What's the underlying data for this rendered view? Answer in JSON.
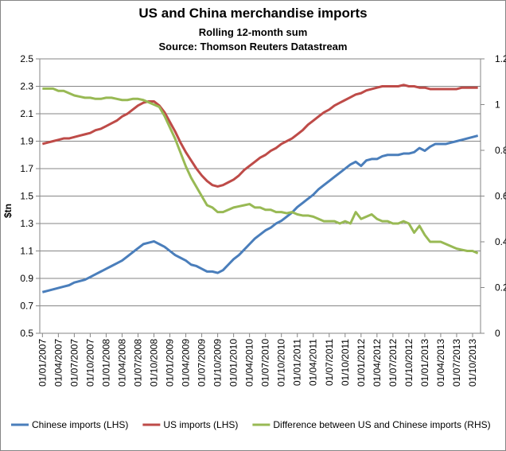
{
  "chart_data": {
    "type": "line",
    "title": "US and China merchandise imports",
    "subtitle": "Rolling 12-month sum",
    "source": "Source: Thomson Reuters Datastream",
    "y_label": "$tn",
    "categories": [
      "01/01/2007",
      null,
      null,
      "01/04/2007",
      null,
      null,
      "01/07/2007",
      null,
      null,
      "01/10/2007",
      null,
      null,
      "01/01/2008",
      null,
      null,
      "01/04/2008",
      null,
      null,
      "01/07/2008",
      null,
      null,
      "01/10/2008",
      null,
      null,
      "01/01/2009",
      null,
      null,
      "01/04/2009",
      null,
      null,
      "01/07/2009",
      null,
      null,
      "01/10/2009",
      null,
      null,
      "01/01/2010",
      null,
      null,
      "01/04/2010",
      null,
      null,
      "01/07/2010",
      null,
      null,
      "01/10/2010",
      null,
      null,
      "01/01/2011",
      null,
      null,
      "01/04/2011",
      null,
      null,
      "01/07/2011",
      null,
      null,
      "01/10/2011",
      null,
      null,
      "01/01/2012",
      null,
      null,
      "01/04/2012",
      null,
      null,
      "01/07/2012",
      null,
      null,
      "01/10/2012",
      null,
      null,
      "01/01/2013",
      null,
      null,
      "01/04/2013",
      null,
      null,
      "01/07/2013",
      null,
      null,
      "01/10/2013",
      null
    ],
    "series": [
      {
        "name": "Chinese imports (LHS)",
        "color": "#4a7ebb",
        "values": [
          0.8,
          0.81,
          0.82,
          0.83,
          0.84,
          0.85,
          0.87,
          0.88,
          0.89,
          0.91,
          0.93,
          0.95,
          0.97,
          0.99,
          1.01,
          1.03,
          1.06,
          1.09,
          1.12,
          1.15,
          1.16,
          1.17,
          1.15,
          1.13,
          1.1,
          1.07,
          1.05,
          1.03,
          1.0,
          0.99,
          0.97,
          0.95,
          0.95,
          0.94,
          0.96,
          1.0,
          1.04,
          1.07,
          1.11,
          1.15,
          1.19,
          1.22,
          1.25,
          1.27,
          1.3,
          1.32,
          1.35,
          1.38,
          1.42,
          1.45,
          1.48,
          1.51,
          1.55,
          1.58,
          1.61,
          1.64,
          1.67,
          1.7,
          1.73,
          1.75,
          1.72,
          1.76,
          1.77,
          1.77,
          1.79,
          1.8,
          1.8,
          1.8,
          1.81,
          1.81,
          1.82,
          1.85,
          1.83,
          1.86,
          1.88,
          1.88,
          1.88,
          1.89,
          1.9,
          1.91,
          1.92,
          1.93,
          1.94
        ]
      },
      {
        "name": "US imports (LHS)",
        "color": "#be4b48",
        "values": [
          1.88,
          1.89,
          1.9,
          1.91,
          1.92,
          1.92,
          1.93,
          1.94,
          1.95,
          1.96,
          1.98,
          1.99,
          2.01,
          2.03,
          2.05,
          2.08,
          2.1,
          2.13,
          2.16,
          2.18,
          2.19,
          2.19,
          2.16,
          2.11,
          2.04,
          1.97,
          1.89,
          1.82,
          1.76,
          1.7,
          1.65,
          1.61,
          1.58,
          1.57,
          1.58,
          1.6,
          1.62,
          1.65,
          1.69,
          1.72,
          1.75,
          1.78,
          1.8,
          1.83,
          1.85,
          1.88,
          1.9,
          1.92,
          1.95,
          1.98,
          2.02,
          2.05,
          2.08,
          2.11,
          2.13,
          2.16,
          2.18,
          2.2,
          2.22,
          2.24,
          2.25,
          2.27,
          2.28,
          2.29,
          2.3,
          2.3,
          2.3,
          2.3,
          2.31,
          2.3,
          2.3,
          2.29,
          2.29,
          2.28,
          2.28,
          2.28,
          2.28,
          2.28,
          2.28,
          2.29,
          2.29,
          2.29,
          2.29
        ]
      },
      {
        "name": "Difference between US and Chinese imports (RHS)",
        "color": "#98b954",
        "axis": "y2",
        "values": [
          1.07,
          1.07,
          1.07,
          1.06,
          1.06,
          1.05,
          1.04,
          1.035,
          1.03,
          1.03,
          1.025,
          1.025,
          1.03,
          1.03,
          1.025,
          1.02,
          1.02,
          1.025,
          1.025,
          1.02,
          1.01,
          1.0,
          0.99,
          0.95,
          0.9,
          0.85,
          0.79,
          0.73,
          0.68,
          0.64,
          0.6,
          0.56,
          0.55,
          0.53,
          0.53,
          0.54,
          0.55,
          0.555,
          0.56,
          0.565,
          0.55,
          0.55,
          0.54,
          0.54,
          0.53,
          0.53,
          0.525,
          0.53,
          0.52,
          0.515,
          0.515,
          0.51,
          0.5,
          0.49,
          0.49,
          0.49,
          0.48,
          0.49,
          0.48,
          0.53,
          0.5,
          0.51,
          0.52,
          0.5,
          0.49,
          0.49,
          0.48,
          0.48,
          0.49,
          0.48,
          0.44,
          0.47,
          0.43,
          0.4,
          0.4,
          0.4,
          0.39,
          0.38,
          0.37,
          0.365,
          0.36,
          0.36,
          0.35
        ]
      }
    ],
    "ylim": [
      0.5,
      2.5
    ],
    "yticks": [
      0.5,
      0.7,
      0.9,
      1.1,
      1.3,
      1.5,
      1.7,
      1.9,
      2.1,
      2.3,
      2.5
    ],
    "y2lim": [
      0,
      1.2
    ],
    "y2ticks": [
      0,
      0.2,
      0.4,
      0.6,
      0.8,
      1,
      1.2
    ],
    "grid": true,
    "legend": "bottom"
  }
}
